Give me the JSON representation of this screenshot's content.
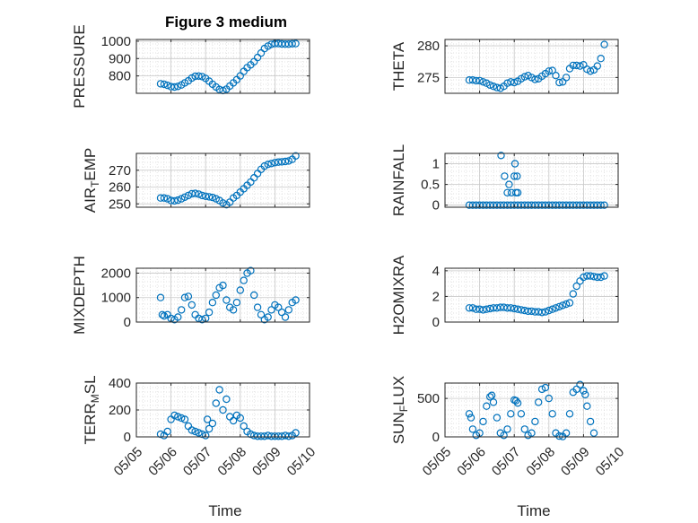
{
  "figure": {
    "title": "Figure 3 medium",
    "xlabel": "Time"
  },
  "colors": {
    "marker": "#0072BD",
    "axes": "#262626",
    "grid": "#d9d9d9",
    "background": "#ffffff"
  },
  "chart_data": [
    {
      "type": "scatter",
      "title": "Figure 3 medium",
      "ylabel": "PRESSURE",
      "xlim": [
        0,
        5
      ],
      "ylim": [
        700,
        1010
      ],
      "xticks": [
        0,
        1,
        2,
        3,
        4,
        5
      ],
      "xticklabels": [
        "",
        "",
        "",
        "",
        "",
        ""
      ],
      "yticks": [
        800,
        900,
        1000
      ],
      "yticklabels": [
        "800",
        "900",
        "1000"
      ],
      "x": [
        0.7,
        0.8,
        0.9,
        1.0,
        1.1,
        1.2,
        1.3,
        1.4,
        1.5,
        1.6,
        1.7,
        1.8,
        1.9,
        2.0,
        2.1,
        2.2,
        2.3,
        2.4,
        2.5,
        2.6,
        2.7,
        2.8,
        2.9,
        3.0,
        3.1,
        3.2,
        3.3,
        3.4,
        3.5,
        3.6,
        3.7,
        3.8,
        3.9,
        4.0,
        4.1,
        4.2,
        4.3,
        4.4,
        4.5,
        4.6
      ],
      "y": [
        755,
        752,
        746,
        738,
        736,
        740,
        748,
        760,
        772,
        788,
        798,
        799,
        796,
        786,
        770,
        752,
        736,
        722,
        716,
        724,
        742,
        760,
        778,
        800,
        826,
        848,
        864,
        882,
        906,
        932,
        958,
        972,
        982,
        986,
        986,
        984,
        983,
        983,
        985,
        986
      ]
    },
    {
      "type": "scatter",
      "ylabel": "THETA",
      "xlim": [
        0,
        5
      ],
      "ylim": [
        272.5,
        281
      ],
      "xticks": [
        0,
        1,
        2,
        3,
        4,
        5
      ],
      "xticklabels": [
        "",
        "",
        "",
        "",
        "",
        ""
      ],
      "yticks": [
        275,
        280
      ],
      "yticklabels": [
        "275",
        "280"
      ],
      "x": [
        0.7,
        0.8,
        0.9,
        1.0,
        1.1,
        1.2,
        1.3,
        1.4,
        1.5,
        1.6,
        1.7,
        1.8,
        1.9,
        2.0,
        2.1,
        2.2,
        2.3,
        2.4,
        2.5,
        2.6,
        2.7,
        2.8,
        2.9,
        3.0,
        3.1,
        3.2,
        3.3,
        3.4,
        3.5,
        3.6,
        3.7,
        3.8,
        3.9,
        4.0,
        4.1,
        4.2,
        4.3,
        4.4,
        4.5,
        4.6
      ],
      "y": [
        274.6,
        274.6,
        274.5,
        274.5,
        274.3,
        274.1,
        273.8,
        273.6,
        273.4,
        273.3,
        273.6,
        274.1,
        274.3,
        274.2,
        274.4,
        274.8,
        275.1,
        275.3,
        275.0,
        274.7,
        274.8,
        275.2,
        275.6,
        276.0,
        276.1,
        275.3,
        274.2,
        274.3,
        275.0,
        276.4,
        276.9,
        276.9,
        276.8,
        277.0,
        276.3,
        276.0,
        276.2,
        276.8,
        278.0,
        280.2
      ]
    },
    {
      "type": "scatter",
      "ylabel": "AIR",
      "ylabel_sub": "T",
      "ylabel_rest": "EMP",
      "xlim": [
        0,
        5
      ],
      "ylim": [
        248,
        280
      ],
      "xticks": [
        0,
        1,
        2,
        3,
        4,
        5
      ],
      "xticklabels": [
        "",
        "",
        "",
        "",
        "",
        ""
      ],
      "yticks": [
        250,
        260,
        270
      ],
      "yticklabels": [
        "250",
        "260",
        "270"
      ],
      "x": [
        0.7,
        0.8,
        0.9,
        1.0,
        1.1,
        1.2,
        1.3,
        1.4,
        1.5,
        1.6,
        1.7,
        1.8,
        1.9,
        2.0,
        2.1,
        2.2,
        2.3,
        2.4,
        2.5,
        2.6,
        2.7,
        2.8,
        2.9,
        3.0,
        3.1,
        3.2,
        3.3,
        3.4,
        3.5,
        3.6,
        3.7,
        3.8,
        3.9,
        4.0,
        4.1,
        4.2,
        4.3,
        4.4,
        4.5,
        4.6
      ],
      "y": [
        253.5,
        253.5,
        253.0,
        252.0,
        251.8,
        252.2,
        253.0,
        254.0,
        255.0,
        256.0,
        256.2,
        255.8,
        255.0,
        254.5,
        254.2,
        253.8,
        253.0,
        252.0,
        250.5,
        249.5,
        251.0,
        253.5,
        255.0,
        257.0,
        259.0,
        261.0,
        263.0,
        265.5,
        268.0,
        270.5,
        272.5,
        273.5,
        274.0,
        274.5,
        274.8,
        275.0,
        275.2,
        275.5,
        276.5,
        278.5
      ]
    },
    {
      "type": "scatter",
      "ylabel": "RAINFALL",
      "xlim": [
        0,
        5
      ],
      "ylim": [
        -0.05,
        1.25
      ],
      "xticks": [
        0,
        1,
        2,
        3,
        4,
        5
      ],
      "xticklabels": [
        "",
        "",
        "",
        "",
        "",
        ""
      ],
      "yticks": [
        0,
        0.5,
        1
      ],
      "yticklabels": [
        "0",
        "0.5",
        "1"
      ],
      "x": [
        0.7,
        0.8,
        0.9,
        1.0,
        1.1,
        1.2,
        1.3,
        1.4,
        1.5,
        1.6,
        1.7,
        1.8,
        1.9,
        2.0,
        2.1,
        2.2,
        2.3,
        2.4,
        2.5,
        2.6,
        2.7,
        2.8,
        2.9,
        3.0,
        3.1,
        3.2,
        3.3,
        3.4,
        3.5,
        3.6,
        3.7,
        3.8,
        3.9,
        4.0,
        4.1,
        4.2,
        4.3,
        4.4,
        4.5,
        4.6,
        1.62,
        1.72,
        1.8,
        1.85,
        1.92,
        2.0,
        2.02,
        2.05,
        2.08,
        2.1
      ],
      "y": [
        0,
        0,
        0,
        0,
        0,
        0,
        0,
        0,
        0,
        0,
        0,
        0,
        0,
        0,
        0,
        0,
        0,
        0,
        0,
        0,
        0,
        0,
        0,
        0,
        0,
        0,
        0,
        0,
        0,
        0,
        0,
        0,
        0,
        0,
        0,
        0,
        0,
        0,
        0,
        0,
        1.2,
        0.7,
        0.3,
        0.5,
        0.3,
        0.7,
        1.0,
        0.3,
        0.7,
        0.3
      ]
    },
    {
      "type": "scatter",
      "ylabel": "MIXDEPTH",
      "xlim": [
        0,
        5
      ],
      "ylim": [
        0,
        2200
      ],
      "xticks": [
        0,
        1,
        2,
        3,
        4,
        5
      ],
      "xticklabels": [
        "",
        "",
        "",
        "",
        "",
        ""
      ],
      "yticks": [
        0,
        1000,
        2000
      ],
      "yticklabels": [
        "0",
        "1000",
        "2000"
      ],
      "x": [
        0.7,
        0.75,
        0.8,
        0.9,
        1.0,
        1.1,
        1.2,
        1.3,
        1.4,
        1.5,
        1.6,
        1.7,
        1.8,
        1.9,
        2.0,
        2.1,
        2.2,
        2.3,
        2.4,
        2.5,
        2.6,
        2.7,
        2.8,
        2.9,
        3.0,
        3.1,
        3.2,
        3.3,
        3.4,
        3.5,
        3.6,
        3.7,
        3.8,
        3.9,
        4.0,
        4.1,
        4.2,
        4.3,
        4.4,
        4.5,
        4.6
      ],
      "y": [
        1000,
        300,
        250,
        300,
        150,
        100,
        200,
        500,
        1000,
        1050,
        700,
        300,
        150,
        100,
        150,
        400,
        800,
        1100,
        1400,
        1500,
        900,
        600,
        500,
        800,
        1300,
        1700,
        2000,
        2100,
        1100,
        600,
        300,
        100,
        200,
        500,
        700,
        600,
        400,
        200,
        500,
        800,
        900
      ]
    },
    {
      "type": "scatter",
      "ylabel": "H2OMIXRA",
      "xlim": [
        0,
        5
      ],
      "ylim": [
        0,
        4.2
      ],
      "xticks": [
        0,
        1,
        2,
        3,
        4,
        5
      ],
      "xticklabels": [
        "",
        "",
        "",
        "",
        "",
        ""
      ],
      "yticks": [
        0,
        2,
        4
      ],
      "yticklabels": [
        "0",
        "2",
        "4"
      ],
      "x": [
        0.7,
        0.8,
        0.9,
        1.0,
        1.1,
        1.2,
        1.3,
        1.4,
        1.5,
        1.6,
        1.7,
        1.8,
        1.9,
        2.0,
        2.1,
        2.2,
        2.3,
        2.4,
        2.5,
        2.6,
        2.7,
        2.8,
        2.9,
        3.0,
        3.1,
        3.2,
        3.3,
        3.4,
        3.5,
        3.6,
        3.7,
        3.8,
        3.9,
        4.0,
        4.1,
        4.2,
        4.3,
        4.4,
        4.5,
        4.6
      ],
      "y": [
        1.1,
        1.1,
        1.0,
        1.0,
        0.95,
        1.0,
        1.05,
        1.1,
        1.1,
        1.15,
        1.15,
        1.1,
        1.1,
        1.05,
        1.0,
        0.95,
        0.9,
        0.85,
        0.85,
        0.8,
        0.8,
        0.75,
        0.8,
        0.9,
        1.0,
        1.1,
        1.2,
        1.3,
        1.4,
        1.5,
        2.2,
        2.8,
        3.2,
        3.5,
        3.6,
        3.6,
        3.55,
        3.5,
        3.5,
        3.6
      ]
    },
    {
      "type": "scatter",
      "ylabel": "TERR",
      "ylabel_sub": "M",
      "ylabel_rest": "SL",
      "xlim": [
        0,
        5
      ],
      "ylim": [
        0,
        400
      ],
      "xticks": [
        0,
        1,
        2,
        3,
        4,
        5
      ],
      "xticklabels": [
        "05/05",
        "05/06",
        "05/07",
        "05/08",
        "05/09",
        "05/10"
      ],
      "yticks": [
        0,
        200,
        400
      ],
      "yticklabels": [
        "0",
        "200",
        "400"
      ],
      "x": [
        0.7,
        0.8,
        0.9,
        1.0,
        1.1,
        1.2,
        1.3,
        1.4,
        1.5,
        1.6,
        1.7,
        1.8,
        1.9,
        2.0,
        2.05,
        2.1,
        2.2,
        2.3,
        2.4,
        2.5,
        2.6,
        2.7,
        2.8,
        2.9,
        3.0,
        3.1,
        3.2,
        3.3,
        3.4,
        3.5,
        3.6,
        3.7,
        3.8,
        3.9,
        4.0,
        4.1,
        4.2,
        4.3,
        4.4,
        4.5,
        4.6
      ],
      "y": [
        20,
        10,
        40,
        130,
        160,
        150,
        140,
        130,
        80,
        50,
        40,
        30,
        20,
        10,
        130,
        60,
        100,
        250,
        350,
        200,
        280,
        150,
        120,
        160,
        140,
        80,
        40,
        20,
        10,
        5,
        5,
        5,
        10,
        5,
        5,
        5,
        5,
        10,
        5,
        10,
        30
      ]
    },
    {
      "type": "scatter",
      "ylabel": "SUN",
      "ylabel_sub": "F",
      "ylabel_rest": "LUX",
      "xlim": [
        0,
        5
      ],
      "ylim": [
        0,
        700
      ],
      "xticks": [
        0,
        1,
        2,
        3,
        4,
        5
      ],
      "xticklabels": [
        "05/05",
        "05/06",
        "05/07",
        "05/08",
        "05/09",
        "05/10"
      ],
      "yticks": [
        0,
        500
      ],
      "yticklabels": [
        "0",
        "500"
      ],
      "x": [
        0.7,
        0.75,
        0.8,
        0.9,
        1.0,
        1.1,
        1.2,
        1.3,
        1.35,
        1.4,
        1.5,
        1.6,
        1.7,
        1.8,
        1.9,
        2.0,
        2.05,
        2.1,
        2.2,
        2.3,
        2.4,
        2.5,
        2.6,
        2.7,
        2.8,
        2.9,
        3.0,
        3.1,
        3.2,
        3.3,
        3.4,
        3.5,
        3.6,
        3.7,
        3.8,
        3.9,
        4.0,
        4.05,
        4.1,
        4.2,
        4.3
      ],
      "y": [
        300,
        250,
        100,
        20,
        50,
        200,
        400,
        520,
        540,
        450,
        250,
        50,
        20,
        100,
        300,
        480,
        470,
        440,
        300,
        100,
        20,
        50,
        200,
        450,
        620,
        640,
        500,
        300,
        50,
        10,
        5,
        50,
        300,
        580,
        620,
        680,
        600,
        550,
        400,
        200,
        50
      ]
    }
  ]
}
